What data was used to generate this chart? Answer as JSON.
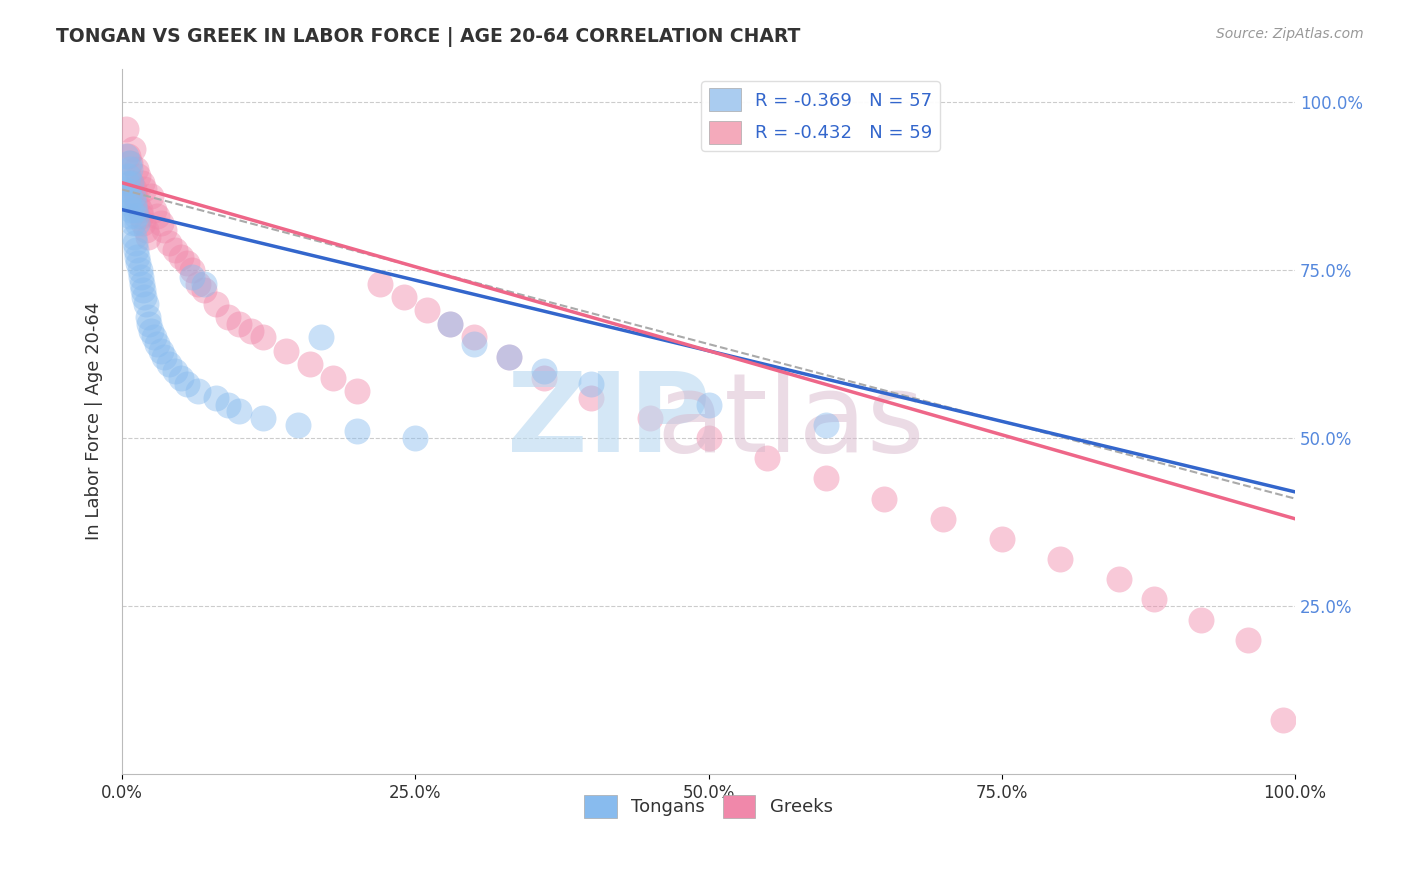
{
  "title": "TONGAN VS GREEK IN LABOR FORCE | AGE 20-64 CORRELATION CHART",
  "source": "Source: ZipAtlas.com",
  "ylabel": "In Labor Force | Age 20-64",
  "legend_entries": [
    {
      "label": "R = -0.369   N = 57",
      "color": "#aaccf0"
    },
    {
      "label": "R = -0.432   N = 59",
      "color": "#f4aabb"
    }
  ],
  "bottom_legend": [
    "Tongans",
    "Greeks"
  ],
  "tongan_color": "#88bbee",
  "greek_color": "#f088aa",
  "tongan_line_color": "#3366cc",
  "greek_line_color": "#ee6688",
  "dashed_line_color": "#aaaaaa",
  "grid_color": "#cccccc",
  "background_color": "#ffffff",
  "tongan_x": [
    0.002,
    0.003,
    0.004,
    0.005,
    0.005,
    0.006,
    0.006,
    0.007,
    0.007,
    0.008,
    0.008,
    0.009,
    0.009,
    0.01,
    0.01,
    0.011,
    0.011,
    0.012,
    0.012,
    0.013,
    0.013,
    0.014,
    0.015,
    0.016,
    0.017,
    0.018,
    0.019,
    0.02,
    0.022,
    0.023,
    0.025,
    0.027,
    0.03,
    0.033,
    0.036,
    0.04,
    0.045,
    0.05,
    0.055,
    0.06,
    0.065,
    0.07,
    0.08,
    0.09,
    0.1,
    0.12,
    0.15,
    0.17,
    0.2,
    0.25,
    0.28,
    0.3,
    0.33,
    0.36,
    0.4,
    0.5,
    0.6
  ],
  "tongan_y": [
    0.87,
    0.92,
    0.88,
    0.85,
    0.89,
    0.91,
    0.86,
    0.83,
    0.9,
    0.84,
    0.88,
    0.82,
    0.86,
    0.8,
    0.85,
    0.79,
    0.84,
    0.78,
    0.83,
    0.77,
    0.82,
    0.76,
    0.75,
    0.74,
    0.73,
    0.72,
    0.71,
    0.7,
    0.68,
    0.67,
    0.66,
    0.65,
    0.64,
    0.63,
    0.62,
    0.61,
    0.6,
    0.59,
    0.58,
    0.74,
    0.57,
    0.73,
    0.56,
    0.55,
    0.54,
    0.53,
    0.52,
    0.65,
    0.51,
    0.5,
    0.67,
    0.64,
    0.62,
    0.6,
    0.58,
    0.55,
    0.52
  ],
  "greek_x": [
    0.003,
    0.005,
    0.007,
    0.008,
    0.009,
    0.01,
    0.011,
    0.012,
    0.013,
    0.014,
    0.015,
    0.016,
    0.017,
    0.018,
    0.019,
    0.02,
    0.022,
    0.025,
    0.027,
    0.03,
    0.033,
    0.036,
    0.04,
    0.045,
    0.05,
    0.055,
    0.06,
    0.065,
    0.07,
    0.08,
    0.09,
    0.1,
    0.11,
    0.12,
    0.14,
    0.16,
    0.18,
    0.2,
    0.22,
    0.24,
    0.26,
    0.28,
    0.3,
    0.33,
    0.36,
    0.4,
    0.45,
    0.5,
    0.55,
    0.6,
    0.65,
    0.7,
    0.75,
    0.8,
    0.85,
    0.88,
    0.92,
    0.96,
    0.99
  ],
  "greek_y": [
    0.96,
    0.92,
    0.91,
    0.88,
    0.93,
    0.87,
    0.86,
    0.9,
    0.85,
    0.89,
    0.84,
    0.83,
    0.88,
    0.82,
    0.87,
    0.81,
    0.8,
    0.86,
    0.84,
    0.83,
    0.82,
    0.81,
    0.79,
    0.78,
    0.77,
    0.76,
    0.75,
    0.73,
    0.72,
    0.7,
    0.68,
    0.67,
    0.66,
    0.65,
    0.63,
    0.61,
    0.59,
    0.57,
    0.73,
    0.71,
    0.69,
    0.67,
    0.65,
    0.62,
    0.59,
    0.56,
    0.53,
    0.5,
    0.47,
    0.44,
    0.41,
    0.38,
    0.35,
    0.32,
    0.29,
    0.26,
    0.23,
    0.2,
    0.08
  ],
  "xlim": [
    0.0,
    1.0
  ],
  "ylim": [
    0.0,
    1.05
  ],
  "tongan_line_x0": 0.0,
  "tongan_line_y0": 0.84,
  "tongan_line_x1": 1.0,
  "tongan_line_y1": 0.42,
  "greek_line_x0": 0.0,
  "greek_line_y0": 0.88,
  "greek_line_x1": 1.0,
  "greek_line_y1": 0.38,
  "dashed_line_x0": 0.0,
  "dashed_line_y0": 0.87,
  "dashed_line_x1": 1.0,
  "dashed_line_y1": 0.41,
  "dot_size": 350,
  "dot_alpha": 0.45
}
